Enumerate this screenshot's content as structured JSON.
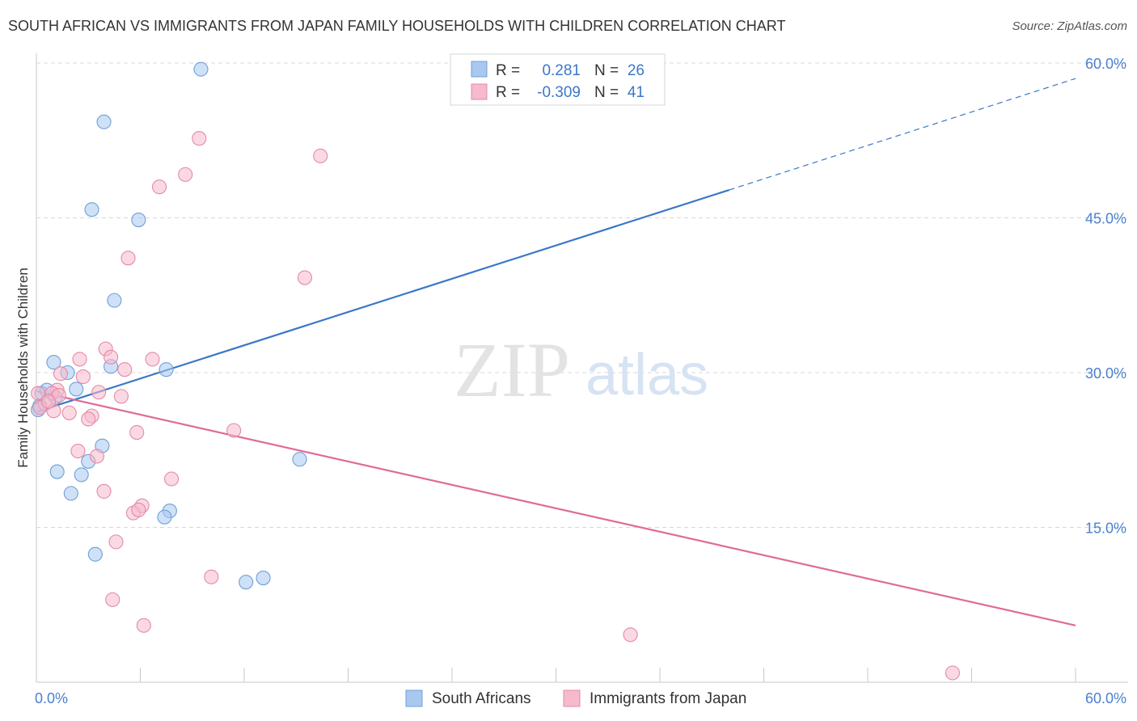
{
  "header": {
    "title": "SOUTH AFRICAN VS IMMIGRANTS FROM JAPAN FAMILY HOUSEHOLDS WITH CHILDREN CORRELATION CHART",
    "source": "Source: ZipAtlas.com"
  },
  "watermark": {
    "zip": "ZIP",
    "atlas": "atlas"
  },
  "colors": {
    "blue": "#a8c8f0",
    "blue_stroke": "#6f9fd8",
    "blue_line": "#3a78c8",
    "pink": "#f7b9cc",
    "pink_stroke": "#e389a8",
    "pink_line": "#e06a98",
    "tick_text": "#4a7fd0",
    "grid": "#d8d8d8"
  },
  "legend_box": {
    "rows": [
      {
        "r_label": "R =",
        "r_value": "0.281",
        "n_label": "N =",
        "n_value": "26"
      },
      {
        "r_label": "R =",
        "r_value": "-0.309",
        "n_label": "N =",
        "n_value": "41"
      }
    ]
  },
  "chart_data": {
    "type": "scatter",
    "title": "SOUTH AFRICAN VS IMMIGRANTS FROM JAPAN FAMILY HOUSEHOLDS WITH CHILDREN CORRELATION CHART",
    "xlabel": "",
    "ylabel": "Family Households with Children",
    "xlim": [
      0,
      60
    ],
    "ylim": [
      0,
      60
    ],
    "x_tick_labels": [
      "0.0%",
      "60.0%"
    ],
    "y_ticks": [
      15,
      30,
      45,
      60
    ],
    "y_tick_labels": [
      "15.0%",
      "30.0%",
      "45.0%",
      "60.0%"
    ],
    "legend": [
      "South Africans",
      "Immigrants from Japan"
    ],
    "series": [
      {
        "name": "South Africans",
        "r": 0.281,
        "n": 26,
        "points": [
          [
            9.5,
            59.4
          ],
          [
            3.9,
            54.3
          ],
          [
            3.2,
            45.8
          ],
          [
            5.9,
            44.8
          ],
          [
            4.5,
            37.0
          ],
          [
            1.0,
            31.0
          ],
          [
            1.8,
            30.0
          ],
          [
            4.3,
            30.6
          ],
          [
            7.5,
            30.3
          ],
          [
            0.3,
            28.0
          ],
          [
            0.6,
            28.3
          ],
          [
            2.3,
            28.4
          ],
          [
            1.1,
            27.6
          ],
          [
            0.2,
            26.8
          ],
          [
            0.1,
            26.4
          ],
          [
            3.8,
            22.9
          ],
          [
            1.2,
            20.4
          ],
          [
            2.6,
            20.1
          ],
          [
            3.0,
            21.4
          ],
          [
            15.2,
            21.6
          ],
          [
            2.0,
            18.3
          ],
          [
            7.7,
            16.6
          ],
          [
            7.4,
            16.0
          ],
          [
            3.4,
            12.4
          ],
          [
            13.1,
            10.1
          ],
          [
            12.1,
            9.7
          ]
        ],
        "trend": {
          "x0": 0,
          "y0": 26.2,
          "x1": 40,
          "y1": 47.7,
          "dashed_to_x": 60,
          "dashed_to_y": 58.5
        }
      },
      {
        "name": "Immigrants from Japan",
        "r": -0.309,
        "n": 41,
        "points": [
          [
            9.4,
            52.7
          ],
          [
            16.4,
            51.0
          ],
          [
            8.6,
            49.2
          ],
          [
            7.1,
            48.0
          ],
          [
            5.3,
            41.1
          ],
          [
            15.5,
            39.2
          ],
          [
            4.0,
            32.3
          ],
          [
            2.5,
            31.3
          ],
          [
            4.3,
            31.5
          ],
          [
            6.7,
            31.3
          ],
          [
            5.1,
            30.3
          ],
          [
            2.7,
            29.6
          ],
          [
            1.4,
            29.9
          ],
          [
            1.2,
            28.3
          ],
          [
            0.9,
            28.0
          ],
          [
            1.3,
            27.8
          ],
          [
            3.6,
            28.1
          ],
          [
            4.9,
            27.7
          ],
          [
            0.5,
            27.0
          ],
          [
            0.2,
            26.6
          ],
          [
            1.0,
            26.3
          ],
          [
            1.9,
            26.1
          ],
          [
            3.2,
            25.8
          ],
          [
            3.0,
            25.5
          ],
          [
            11.4,
            24.4
          ],
          [
            5.8,
            24.2
          ],
          [
            2.4,
            22.4
          ],
          [
            3.5,
            21.9
          ],
          [
            7.8,
            19.7
          ],
          [
            3.9,
            18.5
          ],
          [
            6.1,
            17.1
          ],
          [
            5.6,
            16.4
          ],
          [
            5.9,
            16.7
          ],
          [
            4.6,
            13.6
          ],
          [
            10.1,
            10.2
          ],
          [
            4.4,
            8.0
          ],
          [
            6.2,
            5.5
          ],
          [
            34.3,
            4.6
          ],
          [
            52.9,
            0.9
          ],
          [
            0.1,
            28.0
          ],
          [
            0.7,
            27.2
          ]
        ],
        "trend": {
          "x0": 0,
          "y0": 28.2,
          "x1": 60,
          "y1": 5.5
        }
      }
    ]
  }
}
